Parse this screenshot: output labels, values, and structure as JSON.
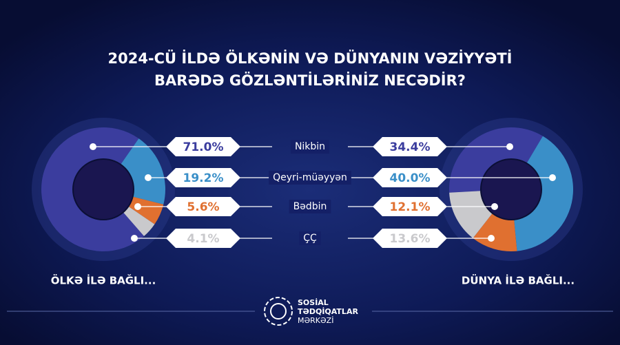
{
  "title": [
    "2024-CÜ İLDƏ ÖLKƏNİN VƏ DÜNYANIN VƏZİYYƏTİ",
    "BARƏDƏ GÖZLƏNTİLƏRİNİZ NECƏDİR?"
  ],
  "categories": [
    "Nikbin",
    "Qeyri-müəyyən",
    "Bədbin",
    "ÇÇ"
  ],
  "colors": [
    "#3b3d9e",
    "#3a8fc8",
    "#e07030",
    "#c9c9cc"
  ],
  "chart_data": [
    {
      "type": "donut",
      "title": "ÖLKƏ İLƏ BAĞLI...",
      "values": [
        71.0,
        19.2,
        5.6,
        4.1
      ],
      "value_labels": [
        "71.0%",
        "19.2%",
        "5.6%",
        "4.1%"
      ]
    },
    {
      "type": "donut",
      "title": "DÜNYA İLƏ BAĞLI...",
      "values": [
        34.4,
        40.0,
        12.1,
        13.6
      ],
      "value_labels": [
        "34.4%",
        "40.0%",
        "12.1%",
        "13.6%"
      ]
    }
  ],
  "footer": [
    "SOSİAL",
    "TƏDQİQATLAR",
    "MƏRKƏZİ"
  ]
}
